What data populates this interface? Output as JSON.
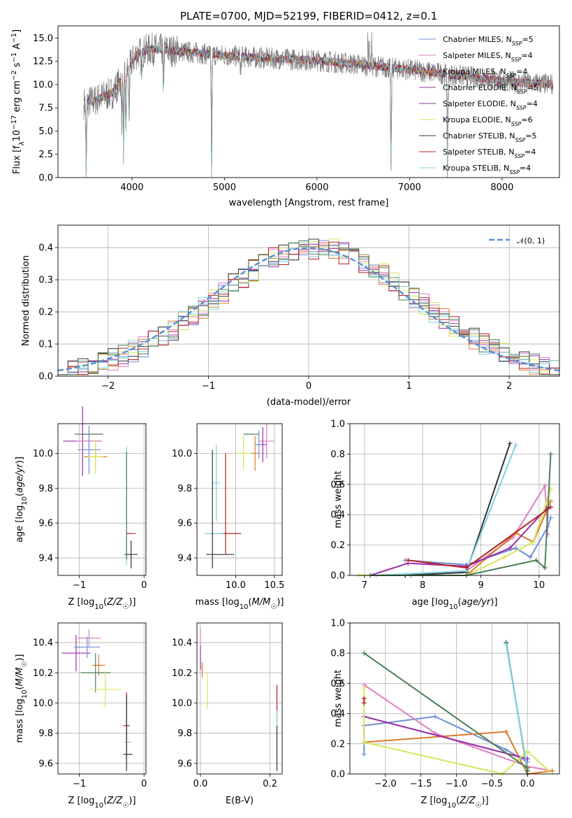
{
  "title": "PLATE=0700, MJD=52199, FIBERID=0412, z=0.1",
  "colors": {
    "cm": "#6f8fd7",
    "sm": "#dd7fbf",
    "km": "#dd7a2a",
    "ce": "#9a2ba8",
    "se": "#8e2fa0",
    "ke": "#d6e65a",
    "cs": "#333333",
    "ss": "#b22222",
    "ks": "#7fd3dc",
    "dark_green": "#4f7f56",
    "blue": "#6088dd",
    "pink": "#e077b8",
    "orange": "#dd7020",
    "purple": "#8b2aa6",
    "yellow": "#d6e65a",
    "cyan": "#7fd3dc",
    "black": "#3a3a3a",
    "gaussian": "#5b8fd6"
  },
  "chart_data": [
    {
      "type": "line",
      "id": "spectrum",
      "xlabel": "wavelength [Angstrom, rest frame]",
      "ylabel": "Flux [f_λ 10^-17 erg cm^-2 s^-1 A^-1]",
      "xlim": [
        3200,
        8620
      ],
      "ylim": [
        0,
        16.3
      ],
      "xticks": [
        4000,
        5000,
        6000,
        7000,
        8000
      ],
      "yticks": [
        0.0,
        2.5,
        5.0,
        7.5,
        10.0,
        12.5,
        15.0
      ],
      "legend": [
        {
          "label": "Chabrier MILES, N_SSP=5",
          "color_key": "cm"
        },
        {
          "label": "Salpeter MILES, N_SSP=4",
          "color_key": "sm"
        },
        {
          "label": "Kroupa MILES, N_SSP=4",
          "color_key": "km"
        },
        {
          "label": "Chabrier ELODIE, N_SSP=5",
          "color_key": "ce"
        },
        {
          "label": "Salpeter ELODIE, N_SSP=4",
          "color_key": "se"
        },
        {
          "label": "Kroupa ELODIE, N_SSP=6",
          "color_key": "ke"
        },
        {
          "label": "Chabrier STELIB, N_SSP=5",
          "color_key": "cs"
        },
        {
          "label": "Salpeter STELIB, N_SSP=4",
          "color_key": "ss"
        },
        {
          "label": "Kroupa STELIB, N_SSP=4",
          "color_key": "ks"
        }
      ],
      "continuum": {
        "x": [
          3480,
          3600,
          3800,
          3950,
          4050,
          4200,
          4500,
          5000,
          5500,
          6000,
          6500,
          7000,
          7500,
          8000,
          8200,
          8550
        ],
        "y": [
          8.0,
          8.3,
          9.2,
          11.5,
          13.3,
          13.8,
          13.6,
          13.1,
          12.8,
          12.6,
          12.1,
          11.6,
          11.0,
          10.4,
          10.2,
          10.0
        ]
      },
      "absorption": [
        {
          "x": 3505,
          "depth": 8.2
        },
        {
          "x": 3890,
          "depth": 4.5
        },
        {
          "x": 3910,
          "depth": 8.0
        },
        {
          "x": 3934,
          "depth": 7.0
        },
        {
          "x": 3969,
          "depth": 5.5
        },
        {
          "x": 4102,
          "depth": 3.0
        },
        {
          "x": 4340,
          "depth": 4.5
        },
        {
          "x": 4861,
          "depth": 13.0
        },
        {
          "x": 5175,
          "depth": 2.0
        },
        {
          "x": 6800,
          "depth": 11.5
        },
        {
          "x": 7410,
          "depth": 11.0
        }
      ],
      "emission": [
        {
          "x": 6563,
          "height": 3.5
        },
        {
          "x": 6550,
          "height": 2.5
        },
        {
          "x": 6590,
          "height": 3.0
        }
      ]
    },
    {
      "type": "histogram",
      "id": "residuals",
      "xlabel": "(data-model)/error",
      "ylabel": "Normed distribution",
      "xlim": [
        -2.5,
        2.5
      ],
      "ylim": [
        0,
        0.47
      ],
      "xticks": [
        -2,
        -1,
        0,
        1,
        2
      ],
      "yticks": [
        0.0,
        0.1,
        0.2,
        0.3,
        0.4
      ],
      "bin_width": 0.1,
      "legend": [
        {
          "label": "𝒩(0, 1)",
          "color_key": "gaussian"
        }
      ],
      "series_colors": [
        "cm",
        "sm",
        "km",
        "ce",
        "ke",
        "cs",
        "ss",
        "ks",
        "dark_green"
      ]
    },
    {
      "type": "errorbar",
      "id": "age_vs_Z",
      "xlabel": "Z [log10(Z/Z☉)]",
      "ylabel": "age  [log10(age/yr)]",
      "xlim": [
        -1.33,
        0.03
      ],
      "ylim": [
        9.3,
        10.17
      ],
      "xticks": [
        -1,
        0
      ],
      "yticks": [
        9.4,
        9.6,
        9.8,
        10.0
      ],
      "points": [
        {
          "x": -0.85,
          "xerr": 0.22,
          "y": 10.11,
          "yerr": 0.0,
          "color_key": "dark_green"
        },
        {
          "x": -0.95,
          "xerr": 0.3,
          "y": 10.07,
          "yerr": 0.2,
          "color_key": "ce"
        },
        {
          "x": -0.85,
          "xerr": 0.2,
          "y": 10.07,
          "yerr": 0.06,
          "color_key": "sm"
        },
        {
          "x": -0.85,
          "xerr": 0.18,
          "y": 10.02,
          "yerr": 0.14,
          "color_key": "cm"
        },
        {
          "x": -0.75,
          "xerr": 0.18,
          "y": 9.98,
          "yerr": 0.06,
          "color_key": "km"
        },
        {
          "x": -0.75,
          "xerr": 0.12,
          "y": 9.98,
          "yerr": 0.1,
          "color_key": "ke"
        },
        {
          "x": -0.27,
          "xerr": 0.0,
          "y": 9.7,
          "yerr": 0.34,
          "color_key": "ks"
        },
        {
          "x": -0.27,
          "xerr": 0.0,
          "y": 9.7,
          "yerr": 0.31,
          "color_key": "dark_green"
        },
        {
          "x": -0.2,
          "xerr": 0.07,
          "y": 9.54,
          "yerr": 0.0,
          "color_key": "ss"
        },
        {
          "x": -0.2,
          "xerr": 0.1,
          "y": 9.42,
          "yerr": 0.08,
          "color_key": "cs"
        }
      ]
    },
    {
      "type": "errorbar",
      "id": "age_vs_mass",
      "xlabel": "mass [log10(M/M☉)]",
      "ylabel": "",
      "xlim": [
        9.5,
        10.6
      ],
      "ylim": [
        9.3,
        10.17
      ],
      "xticks": [
        10.0,
        10.5
      ],
      "yticks": [
        9.4,
        9.6,
        9.8,
        10.0
      ],
      "points": [
        {
          "x": 10.2,
          "xerr": 0.1,
          "y": 10.11,
          "yerr": 0.0,
          "color_key": "dark_green"
        },
        {
          "x": 10.4,
          "xerr": 0.1,
          "y": 10.07,
          "yerr": 0.1,
          "color_key": "sm"
        },
        {
          "x": 10.35,
          "xerr": 0.05,
          "y": 10.05,
          "yerr": 0.1,
          "color_key": "ce"
        },
        {
          "x": 10.25,
          "xerr": 0.05,
          "y": 10.0,
          "yerr": 0.1,
          "color_key": "km"
        },
        {
          "x": 10.1,
          "xerr": 0.1,
          "y": 10.0,
          "yerr": 0.1,
          "color_key": "ke"
        },
        {
          "x": 10.3,
          "xerr": 0.05,
          "y": 10.05,
          "yerr": 0.08,
          "color_key": "cm"
        },
        {
          "x": 9.75,
          "xerr": 0.05,
          "y": 9.83,
          "yerr": 0.22,
          "color_key": "ks"
        },
        {
          "x": 9.87,
          "xerr": 0.2,
          "y": 9.54,
          "yerr": 0.0,
          "color_key": "ss"
        },
        {
          "x": 9.87,
          "xerr": 0.0,
          "y": 9.71,
          "yerr": 0.29,
          "color_key": "ss"
        },
        {
          "x": 9.72,
          "xerr": 0.12,
          "y": 9.54,
          "yerr": 0.0,
          "color_key": "ks"
        },
        {
          "x": 9.7,
          "xerr": 0.0,
          "y": 9.68,
          "yerr": 0.34,
          "color_key": "cs"
        },
        {
          "x": 9.8,
          "xerr": 0.18,
          "y": 9.42,
          "yerr": 0.0,
          "color_key": "cs"
        }
      ]
    },
    {
      "type": "line",
      "id": "weight_vs_age",
      "xlabel": "age  [log10(age/yr)]",
      "ylabel": "mass weight",
      "xlim": [
        6.75,
        10.35
      ],
      "ylim": [
        0,
        1.0
      ],
      "xticks": [
        7,
        8,
        9,
        10
      ],
      "yticks": [
        0.0,
        0.2,
        0.4,
        0.6,
        0.8,
        1.0
      ],
      "series": [
        {
          "color_key": "cm",
          "x": [
            7.7,
            8.75,
            9.6,
            9.85,
            10.15,
            10.2
          ],
          "y": [
            0.1,
            0.07,
            0.18,
            0.12,
            0.32,
            0.38
          ]
        },
        {
          "color_key": "sm",
          "x": [
            7.7,
            8.75,
            9.55,
            10.1,
            10.15
          ],
          "y": [
            0.0,
            0.03,
            0.25,
            0.59,
            0.27
          ]
        },
        {
          "color_key": "km",
          "x": [
            7.8,
            8.75,
            9.6,
            9.9,
            10.2
          ],
          "y": [
            0.0,
            0.0,
            0.28,
            0.22,
            0.49
          ]
        },
        {
          "color_key": "ce",
          "x": [
            7.1,
            7.75,
            8.75,
            9.5,
            10.15
          ],
          "y": [
            0.0,
            0.08,
            0.06,
            0.18,
            0.45
          ]
        },
        {
          "color_key": "ke",
          "x": [
            6.9,
            8.75,
            9.4,
            9.9,
            10.2
          ],
          "y": [
            0.0,
            0.0,
            0.12,
            0.22,
            0.57
          ]
        },
        {
          "color_key": "cs",
          "x": [
            7.7,
            8.75,
            9.5
          ],
          "y": [
            0.0,
            0.02,
            0.87
          ]
        },
        {
          "color_key": "ks",
          "x": [
            7.2,
            8.75,
            9.6
          ],
          "y": [
            0.0,
            0.03,
            0.86
          ]
        },
        {
          "color_key": "dark_green",
          "x": [
            7.1,
            8.75,
            9.95,
            10.1,
            10.2
          ],
          "y": [
            0.0,
            0.0,
            0.1,
            0.05,
            0.8
          ]
        },
        {
          "color_key": "ss",
          "x": [
            7.75,
            8.75,
            10.2
          ],
          "y": [
            0.1,
            0.05,
            0.45
          ]
        }
      ]
    },
    {
      "type": "errorbar",
      "id": "mass_vs_Z",
      "xlabel": "Z [log10(Z/Z☉)]",
      "ylabel": "mass [log10(M/M☉)]",
      "xlim": [
        -1.33,
        0.03
      ],
      "ylim": [
        9.53,
        10.53
      ],
      "xticks": [
        -1,
        0
      ],
      "yticks": [
        9.6,
        9.8,
        10.0,
        10.2,
        10.4
      ],
      "points": [
        {
          "x": -0.85,
          "xerr": 0.18,
          "y": 10.43,
          "yerr": 0.06,
          "color_key": "sm"
        },
        {
          "x": -1.05,
          "xerr": 0.22,
          "y": 10.33,
          "yerr": 0.12,
          "color_key": "ce"
        },
        {
          "x": -0.88,
          "xerr": 0.2,
          "y": 10.37,
          "yerr": 0.07,
          "color_key": "cm"
        },
        {
          "x": -0.7,
          "xerr": 0.1,
          "y": 10.25,
          "yerr": 0.07,
          "color_key": "km"
        },
        {
          "x": -0.75,
          "xerr": 0.23,
          "y": 10.2,
          "yerr": 0.13,
          "color_key": "dark_green"
        },
        {
          "x": -0.6,
          "xerr": 0.25,
          "y": 10.09,
          "yerr": 0.12,
          "color_key": "ke"
        },
        {
          "x": -0.27,
          "xerr": 0.05,
          "y": 9.85,
          "yerr": 0.22,
          "color_key": "ss"
        },
        {
          "x": -0.25,
          "xerr": 0.05,
          "y": 9.74,
          "yerr": 0.0,
          "color_key": "ks"
        },
        {
          "x": -0.25,
          "xerr": 0.07,
          "y": 9.66,
          "yerr": 0.0,
          "color_key": "cs"
        },
        {
          "x": -0.27,
          "xerr": 0.0,
          "y": 9.8,
          "yerr": 0.25,
          "color_key": "cs"
        }
      ]
    },
    {
      "type": "errorbar",
      "id": "mass_vs_ebv",
      "xlabel": "E(B-V)",
      "ylabel": "",
      "xlim": [
        -0.01,
        0.235
      ],
      "ylim": [
        9.53,
        10.53
      ],
      "xticks": [
        0.0,
        0.2
      ],
      "yticks": [
        9.6,
        9.8,
        10.0,
        10.2,
        10.4
      ],
      "points": [
        {
          "x": 0.0,
          "xerr": 0.0,
          "y": 10.43,
          "yerr": 0.06,
          "color_key": "sm"
        },
        {
          "x": 0.0,
          "xerr": 0.0,
          "y": 10.3,
          "yerr": 0.08,
          "color_key": "ce"
        },
        {
          "x": 0.005,
          "xerr": 0.0,
          "y": 10.22,
          "yerr": 0.05,
          "color_key": "km"
        },
        {
          "x": 0.02,
          "xerr": 0.0,
          "y": 10.08,
          "yerr": 0.12,
          "color_key": "ke"
        },
        {
          "x": 0.22,
          "xerr": 0.0,
          "y": 10.0,
          "yerr": 0.12,
          "color_key": "ss"
        },
        {
          "x": 0.22,
          "xerr": 0.0,
          "y": 9.75,
          "yerr": 0.2,
          "color_key": "ks"
        },
        {
          "x": 0.22,
          "xerr": 0.0,
          "y": 9.7,
          "yerr": 0.15,
          "color_key": "cs"
        }
      ]
    },
    {
      "type": "line",
      "id": "weight_vs_Z",
      "xlabel": "Z [log10(Z/Z☉)]",
      "ylabel": "mass weight",
      "xlim": [
        -2.5,
        0.45
      ],
      "ylim": [
        0,
        1.0
      ],
      "xticks": [
        -2.0,
        -1.5,
        -1.0,
        -0.5,
        0.0
      ],
      "yticks": [
        0.0,
        0.2,
        0.4,
        0.6,
        0.8,
        1.0
      ],
      "series": [
        {
          "color_key": "cm",
          "x": [
            -2.3,
            -2.3,
            -1.3,
            -0.3,
            0.0
          ],
          "y": [
            0.13,
            0.32,
            0.38,
            0.16,
            0.08
          ]
        },
        {
          "color_key": "sm",
          "x": [
            -2.3,
            -1.3,
            0.0,
            0.35
          ],
          "y": [
            0.59,
            0.27,
            0.05,
            0.02
          ]
        },
        {
          "color_key": "km",
          "x": [
            -2.3,
            -0.3,
            0.0,
            0.35
          ],
          "y": [
            0.21,
            0.28,
            0.0,
            0.02
          ]
        },
        {
          "color_key": "ce",
          "x": [
            -2.3,
            0.0
          ],
          "y": [
            0.38,
            0.1
          ]
        },
        {
          "color_key": "ke",
          "x": [
            -2.3,
            -2.3,
            -0.35,
            0.0,
            0.3
          ],
          "y": [
            0.57,
            0.21,
            0.0,
            0.15,
            0.02
          ]
        },
        {
          "color_key": "cs",
          "x": [
            -0.3,
            0.0
          ],
          "y": [
            0.87,
            0.02
          ]
        },
        {
          "color_key": "ks",
          "x": [
            -0.3,
            0.0
          ],
          "y": [
            0.86,
            0.03
          ]
        },
        {
          "color_key": "dark_green",
          "x": [
            -2.3,
            0.0,
            0.0
          ],
          "y": [
            0.8,
            0.04,
            0.0
          ]
        },
        {
          "color_key": "ss",
          "x": [
            -2.3,
            -2.3
          ],
          "y": [
            0.47,
            0.5
          ]
        }
      ]
    }
  ]
}
